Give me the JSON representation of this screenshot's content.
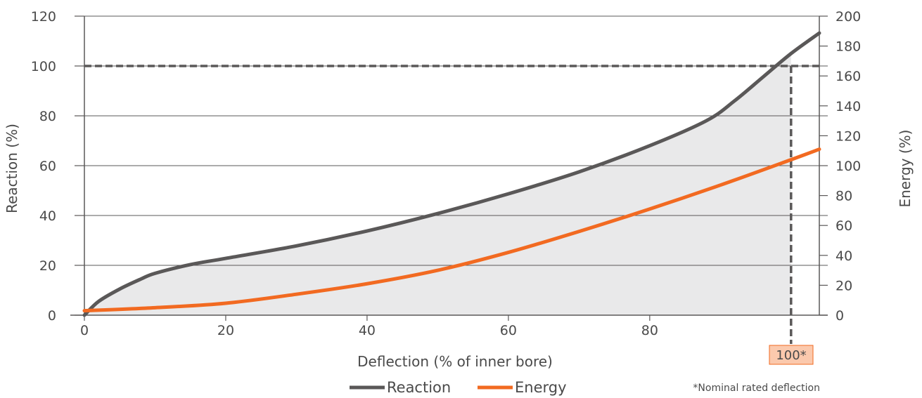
{
  "chart_data": {
    "type": "line",
    "xlabel": "Deflection (% of inner bore)",
    "ylabel_left": "Reaction (%)",
    "ylabel_right": "Energy (%)",
    "xlim": [
      0,
      104
    ],
    "ylim_left": [
      0,
      120
    ],
    "ylim_right": [
      0,
      200
    ],
    "x_ticks": [
      0,
      20,
      40,
      60,
      80
    ],
    "x_tick_labels": [
      "0",
      "20",
      "40",
      "60",
      "80"
    ],
    "y_left_ticks": [
      0,
      20,
      40,
      60,
      80,
      100,
      120
    ],
    "y_left_tick_labels": [
      "0",
      "20",
      "40",
      "60",
      "80",
      "100",
      "120"
    ],
    "y_right_ticks": [
      0,
      20,
      40,
      60,
      80,
      100,
      120,
      140,
      160,
      180,
      200
    ],
    "y_right_tick_labels": [
      "0",
      "20",
      "40",
      "60",
      "80",
      "100",
      "120",
      "140",
      "160",
      "180",
      "200"
    ],
    "grid": "horizontal",
    "legend_position": "bottom-center",
    "series": [
      {
        "name": "Reaction",
        "axis": "left",
        "color": "#5a5858",
        "x": [
          0,
          2,
          5,
          8,
          10,
          15,
          20,
          30,
          40,
          50,
          60,
          70,
          80,
          88,
          92,
          96,
          100,
          104
        ],
        "y": [
          0,
          5.5,
          10.5,
          14.5,
          16.8,
          20.3,
          22.8,
          27.8,
          33.8,
          40.8,
          48.7,
          57.5,
          68,
          78,
          86,
          95.5,
          105,
          113.2
        ]
      },
      {
        "name": "Energy",
        "axis": "right",
        "color": "#f26a21",
        "x": [
          0,
          10,
          20,
          30,
          40,
          50,
          60,
          70,
          80,
          90,
          100,
          104
        ],
        "y": [
          3,
          5,
          8,
          14,
          21,
          30,
          42,
          56,
          71,
          87,
          104,
          111
        ]
      }
    ],
    "reference_lines": {
      "horizontal_y_left": 100,
      "vertical_x": 100,
      "vertical_label": "100*"
    },
    "note": "*Nominal rated deflection"
  },
  "colors": {
    "background": "#ffffff",
    "fill_area": "#e9e9ea",
    "grid": "#5a5858",
    "axis": "#5a5858",
    "marker_bg": "#fbc9ad",
    "marker_border": "#f26a21"
  }
}
